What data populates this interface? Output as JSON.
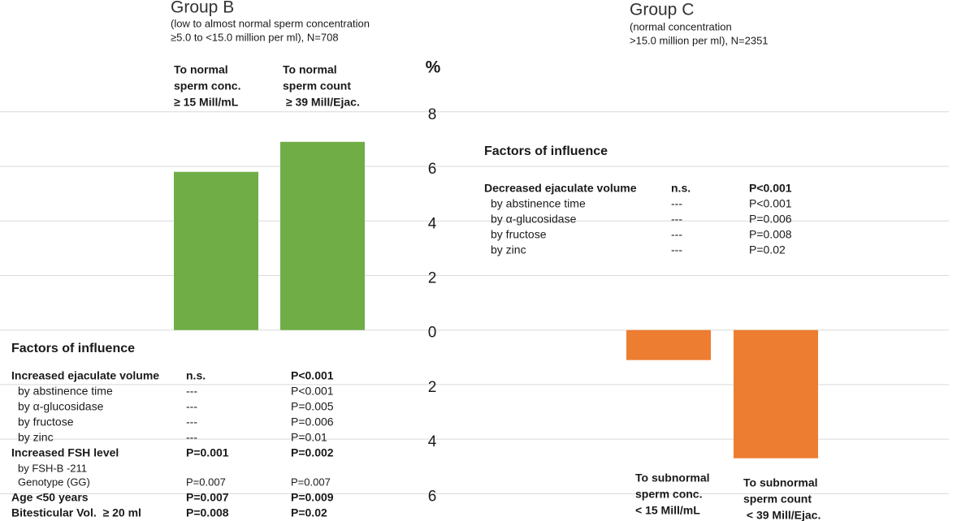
{
  "chart_data": {
    "type": "bar",
    "unit_label": "%",
    "groups": [
      {
        "title": "Group B",
        "subtitle": [
          "(low to almost normal sperm concentration",
          "≥5.0 to <15.0 million per ml), N=708"
        ]
      },
      {
        "title": "Group C",
        "subtitle": [
          "(normal concentration",
          ">15.0 million per ml), N=2351"
        ]
      }
    ],
    "categories": [
      [
        "To normal",
        "sperm conc.",
        "≥ 15 Mill/mL"
      ],
      [
        "To normal",
        "sperm count",
        " ≥ 39 Mill/Ejac."
      ],
      [
        "To subnormal",
        "sperm conc.",
        "< 15 Mill/mL"
      ],
      [
        "To subnormal",
        "sperm count",
        " < 39 Mill/Ejac."
      ]
    ],
    "values": [
      5.8,
      6.9,
      -1.1,
      -4.7
    ],
    "colors": [
      "#70ad47",
      "#70ad47",
      "#ed7d31",
      "#ed7d31"
    ],
    "ylim": [
      -7,
      12.1
    ],
    "yticks": [
      {
        "value": -6,
        "label": "6"
      },
      {
        "value": -4,
        "label": "4"
      },
      {
        "value": -2,
        "label": "2"
      },
      0,
      2,
      4,
      6,
      8
    ],
    "grid": true,
    "factors": [
      {
        "title": "Factors of influence",
        "rows": [
          {
            "cells": [
              "Increased ejaculate volume",
              "n.s.",
              "P<0.001"
            ],
            "bold": true
          },
          {
            "cells": [
              "by abstinence time",
              "---",
              "P<0.001"
            ],
            "indent": true
          },
          {
            "cells": [
              "by α-glucosidase",
              "---",
              "P=0.005"
            ],
            "indent": true
          },
          {
            "cells": [
              "by fructose",
              "---",
              "P=0.006"
            ],
            "indent": true
          },
          {
            "cells": [
              "by zinc",
              "---",
              "P=0.01"
            ],
            "indent": true
          },
          {
            "cells": [
              "Increased FSH level",
              "P=0.001",
              "P=0.002"
            ],
            "bold": true
          },
          {
            "cells": [
              "by FSH-B -211"
            ],
            "indent": true,
            "small": true
          },
          {
            "cells": [
              "Genotype (GG)",
              "P=0.007",
              "P=0.007"
            ],
            "indent": true,
            "small": true
          },
          {
            "cells": [
              "Age <50 years",
              "P=0.007",
              "P=0.009"
            ],
            "bold": true
          },
          {
            "cells": [
              "Bitesticular Vol.  ≥ 20 ml",
              "P=0.008",
              "P=0.02"
            ],
            "bold": true
          }
        ]
      },
      {
        "title": "Factors of influence",
        "rows": [
          {
            "cells": [
              "Decreased ejaculate volume",
              "n.s.",
              "P<0.001"
            ],
            "bold": true
          },
          {
            "cells": [
              "by abstinence time",
              "---",
              "P<0.001"
            ],
            "indent": true
          },
          {
            "cells": [
              "by α-glucosidase",
              "---",
              "P=0.006"
            ],
            "indent": true
          },
          {
            "cells": [
              "by fructose",
              "---",
              "P=0.008"
            ],
            "indent": true
          },
          {
            "cells": [
              "by zinc",
              "---",
              "P=0.02"
            ],
            "indent": true
          }
        ]
      }
    ]
  }
}
